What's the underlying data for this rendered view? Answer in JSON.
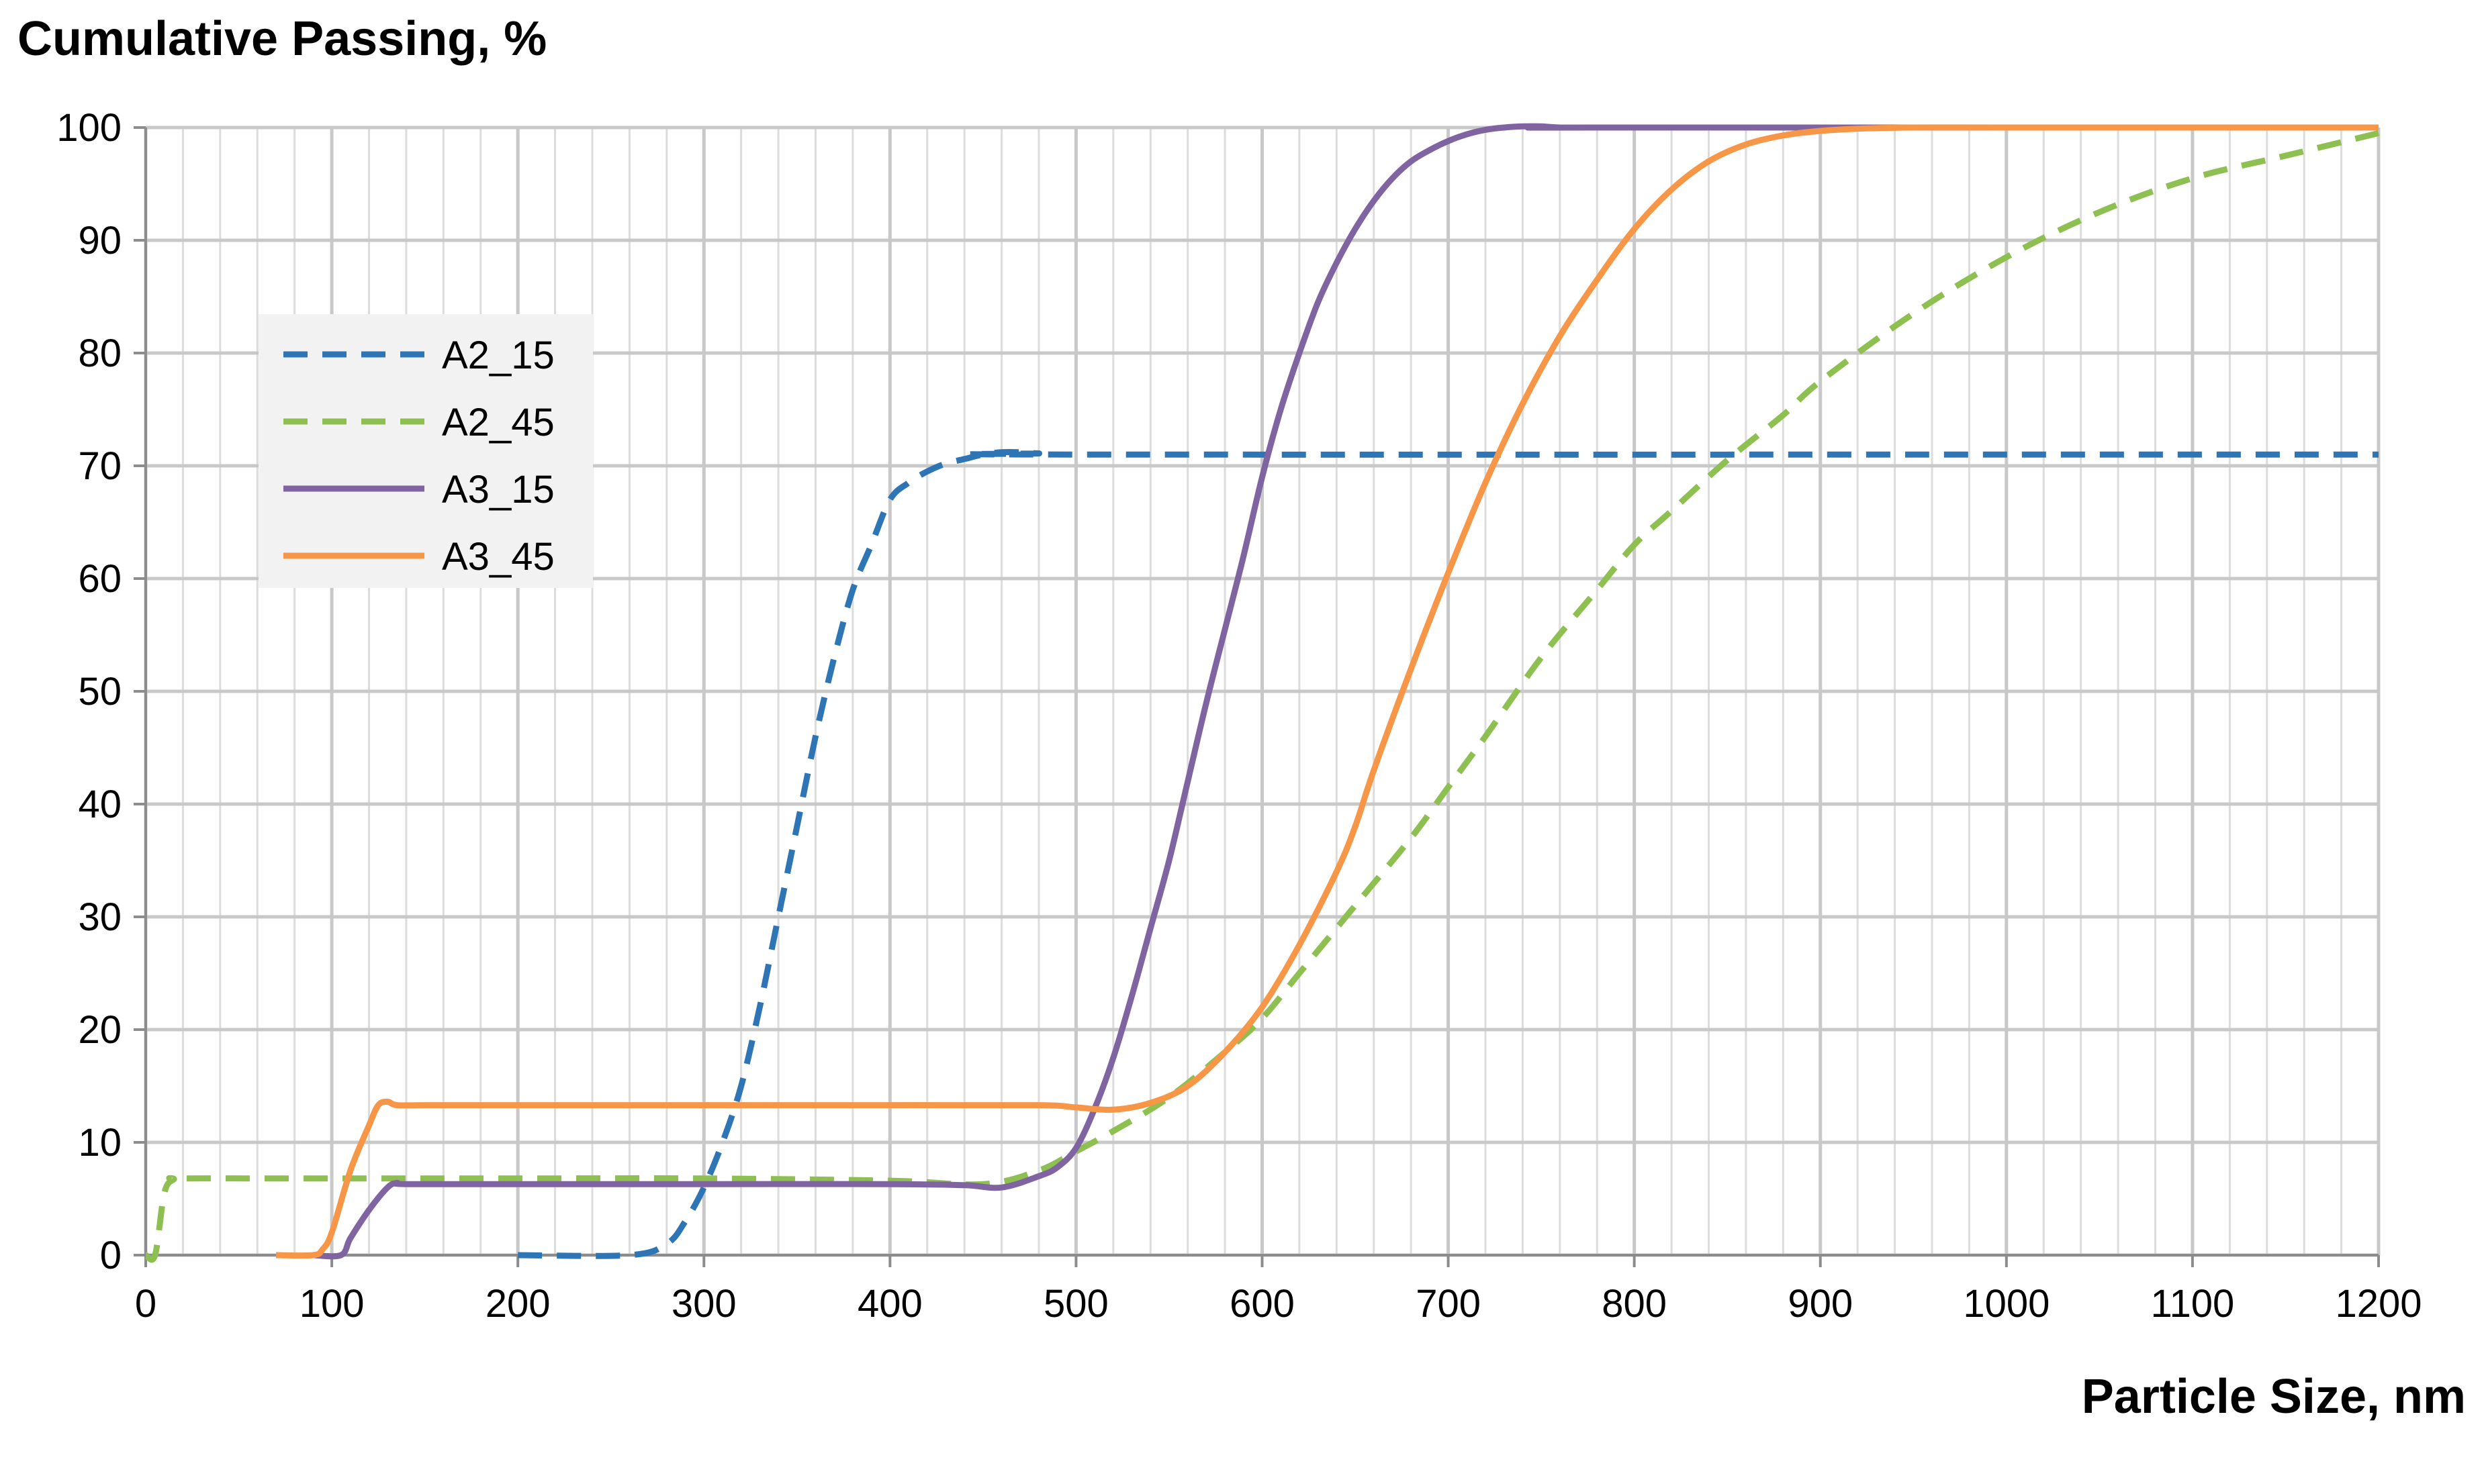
{
  "chart_data": {
    "type": "line",
    "title": "",
    "xlabel": "Particle Size, nm",
    "ylabel": "Cumulative Passing, %",
    "xlim": [
      0,
      1200
    ],
    "ylim": [
      0,
      100
    ],
    "x_major_ticks": [
      0,
      100,
      200,
      300,
      400,
      500,
      600,
      700,
      800,
      900,
      1000,
      1100,
      1200
    ],
    "x_minor_step": 20,
    "y_ticks": [
      0,
      10,
      20,
      30,
      40,
      50,
      60,
      70,
      80,
      90,
      100
    ],
    "x_tick_labels": [
      "0",
      "100",
      "200",
      "300",
      "400",
      "500",
      "600",
      "700",
      "800",
      "900",
      "1000",
      "1100",
      "1200"
    ],
    "y_tick_labels": [
      "0",
      "10",
      "20",
      "30",
      "40",
      "50",
      "60",
      "70",
      "80",
      "90",
      "100"
    ],
    "grid": true,
    "legend_position": "upper-left",
    "series": [
      {
        "name": "A2_15",
        "color": "#2E75B6",
        "dash": true,
        "x": [
          200,
          260,
          280,
          290,
          300,
          310,
          320,
          330,
          340,
          350,
          360,
          370,
          380,
          390,
          400,
          410,
          420,
          430,
          440,
          450,
          460,
          470,
          480,
          500,
          1200
        ],
        "y": [
          0,
          0,
          1,
          3,
          6,
          10,
          15,
          22,
          30,
          38,
          46,
          53,
          59,
          63,
          67,
          68.5,
          69.5,
          70.2,
          70.6,
          71,
          71.2,
          71.2,
          71.1,
          71,
          71
        ]
      },
      {
        "name": "A2_45",
        "color": "#8DC050",
        "dash": true,
        "x": [
          0,
          5,
          10,
          15,
          20,
          100,
          200,
          300,
          400,
          450,
          480,
          500,
          520,
          550,
          580,
          600,
          620,
          650,
          680,
          700,
          720,
          750,
          780,
          800,
          820,
          850,
          880,
          900,
          950,
          1000,
          1050,
          1100,
          1150,
          1200
        ],
        "y": [
          0,
          0,
          5.5,
          6.7,
          6.8,
          6.8,
          6.8,
          6.8,
          6.6,
          6.3,
          7.5,
          9.2,
          11,
          14,
          18,
          21,
          25,
          31,
          37,
          41.5,
          46,
          53,
          59,
          63,
          66,
          70.5,
          74.5,
          77.5,
          83.5,
          88.5,
          92.5,
          95.5,
          97.5,
          99.5
        ]
      },
      {
        "name": "A3_15",
        "color": "#8064A2",
        "dash": false,
        "x": [
          90,
          105,
          110,
          120,
          130,
          135,
          140,
          200,
          300,
          400,
          440,
          460,
          480,
          490,
          500,
          510,
          520,
          530,
          540,
          550,
          560,
          570,
          580,
          590,
          600,
          610,
          620,
          630,
          640,
          650,
          660,
          670,
          680,
          690,
          700,
          710,
          720,
          730,
          740,
          750,
          760,
          780,
          1200
        ],
        "y": [
          0,
          0,
          1.5,
          4,
          6,
          6.4,
          6.3,
          6.3,
          6.3,
          6.3,
          6.2,
          6,
          7,
          7.8,
          9.5,
          13,
          17.5,
          23,
          29,
          35,
          42,
          49,
          55.5,
          62,
          69,
          75,
          80,
          84.5,
          88,
          91,
          93.5,
          95.5,
          97,
          98,
          98.8,
          99.4,
          99.8,
          100,
          100.1,
          100.1,
          100,
          100,
          100
        ]
      },
      {
        "name": "A3_45",
        "color": "#F79646",
        "dash": false,
        "x": [
          70,
          90,
          95,
          100,
          110,
          120,
          125,
          130,
          135,
          150,
          200,
          300,
          400,
          480,
          500,
          520,
          540,
          560,
          580,
          600,
          620,
          640,
          650,
          660,
          680,
          700,
          720,
          740,
          760,
          780,
          800,
          820,
          840,
          860,
          880,
          900,
          920,
          950,
          1000,
          1200
        ],
        "y": [
          0,
          0,
          0.5,
          2,
          7.5,
          11.5,
          13.3,
          13.6,
          13.3,
          13.3,
          13.3,
          13.3,
          13.3,
          13.3,
          13.1,
          12.9,
          13.5,
          15,
          18,
          22,
          27.5,
          34,
          38,
          43,
          52,
          60.5,
          68.5,
          75.5,
          81.5,
          86.5,
          91,
          94.5,
          97,
          98.5,
          99.3,
          99.7,
          99.9,
          100,
          100,
          100
        ]
      }
    ]
  }
}
